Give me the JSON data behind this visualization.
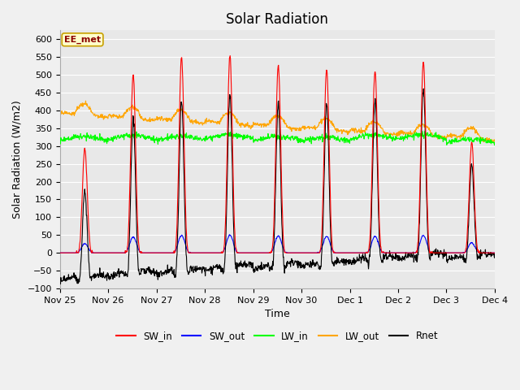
{
  "title": "Solar Radiation",
  "ylabel": "Solar Radiation (W/m2)",
  "xlabel": "Time",
  "ylim": [
    -100,
    625
  ],
  "yticks": [
    -100,
    -50,
    0,
    50,
    100,
    150,
    200,
    250,
    300,
    350,
    400,
    450,
    500,
    550,
    600
  ],
  "date_labels": [
    "Nov 25",
    "Nov 26",
    "Nov 27",
    "Nov 28",
    "Nov 29",
    "Nov 30",
    "Dec 1",
    "Dec 2",
    "Dec 3",
    "Dec 4"
  ],
  "annotation_text": "EE_met",
  "fig_bg": "#f0f0f0",
  "plot_bg": "#e8e8e8",
  "grid_color": "#ffffff",
  "title_fontsize": 12,
  "label_fontsize": 9,
  "tick_fontsize": 8
}
